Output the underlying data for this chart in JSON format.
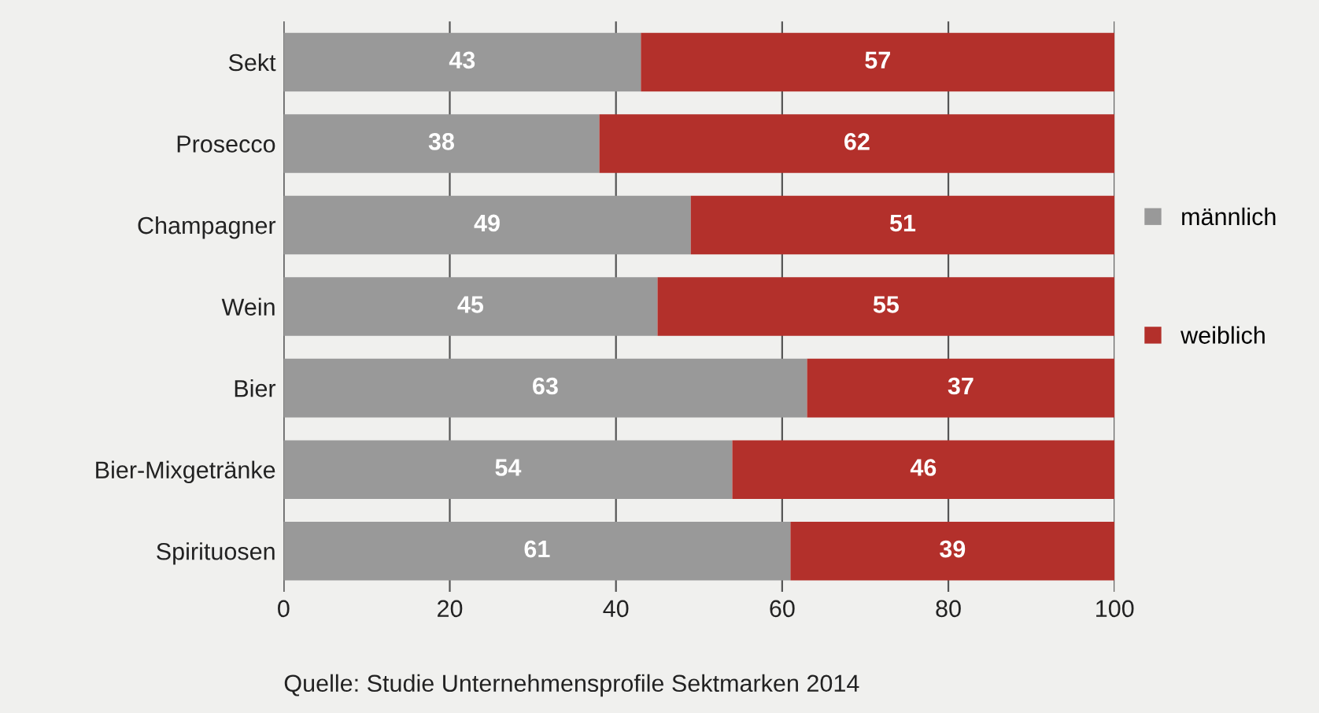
{
  "chart_data": {
    "type": "bar",
    "orientation": "horizontal",
    "stacked": true,
    "categories": [
      "Sekt",
      "Prosecco",
      "Champagner",
      "Wein",
      "Bier",
      "Bier-Mixgetränke",
      "Spirituosen"
    ],
    "series": [
      {
        "name": "männlich",
        "color": "#999999",
        "values": [
          43,
          38,
          49,
          45,
          63,
          54,
          61
        ]
      },
      {
        "name": "weiblich",
        "color": "#b3302b",
        "values": [
          57,
          62,
          51,
          55,
          37,
          46,
          39
        ]
      }
    ],
    "xlim": [
      0,
      100
    ],
    "xticks": [
      0,
      20,
      40,
      60,
      80,
      100
    ],
    "grid": "x",
    "legend": "right",
    "data_labels": true,
    "annotations": [
      "Quelle: Studie Unternehmensprofile Sektmarken 2014"
    ]
  }
}
